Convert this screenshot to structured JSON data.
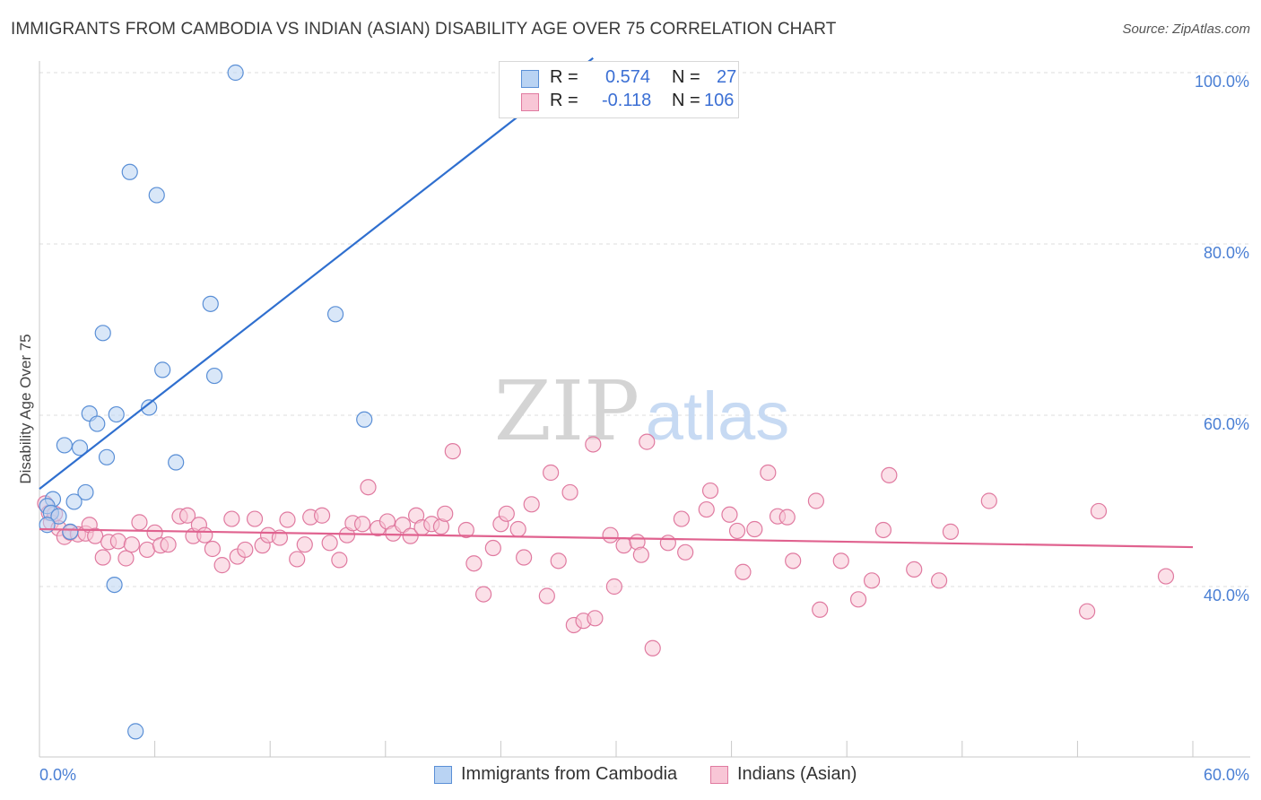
{
  "header": {
    "title": "IMMIGRANTS FROM CAMBODIA VS INDIAN (ASIAN) DISABILITY AGE OVER 75 CORRELATION CHART",
    "source": "Source: ZipAtlas.com"
  },
  "watermark": {
    "zip": "ZIP",
    "atlas": "atlas"
  },
  "legend": {
    "rows": [
      {
        "r_label": "R =",
        "r_value": "0.574",
        "n_label": "N =",
        "n_value": "27"
      },
      {
        "r_label": "R =",
        "r_value": "-0.118",
        "n_label": "N =",
        "n_value": "106"
      }
    ]
  },
  "colors": {
    "blue_fill": "#b9d3f3",
    "blue_stroke": "#5a8fd6",
    "blue_line": "#2f6fcf",
    "pink_fill": "#f8c6d6",
    "pink_stroke": "#e07aa0",
    "pink_line": "#e0628f",
    "tick_text": "#4a7fd4",
    "grid": "#dddddd"
  },
  "chart_data": {
    "type": "scatter",
    "title": "IMMIGRANTS FROM CAMBODIA VS INDIAN (ASIAN) DISABILITY AGE OVER 75 CORRELATION CHART",
    "xlabel": "",
    "ylabel": "Disability Age Over 75",
    "xlim": [
      0,
      60
    ],
    "ylim": [
      20,
      102
    ],
    "x_tick_labels": [
      "0.0%",
      "60.0%"
    ],
    "y_ticks": [
      40,
      60,
      80,
      100
    ],
    "y_tick_labels": [
      "40.0%",
      "60.0%",
      "80.0%",
      "100.0%"
    ],
    "grid": true,
    "series": [
      {
        "name": "Immigrants from Cambodia",
        "color": "blue",
        "r": 0.574,
        "n": 27,
        "trend": {
          "x0": 0.0,
          "y0": 51.4,
          "x1": 28.8,
          "y1": 101.7
        },
        "points": [
          [
            10.2,
            100.0
          ],
          [
            4.7,
            88.4
          ],
          [
            6.1,
            85.7
          ],
          [
            8.9,
            73.0
          ],
          [
            15.4,
            71.8
          ],
          [
            3.3,
            69.6
          ],
          [
            6.4,
            65.3
          ],
          [
            9.1,
            64.6
          ],
          [
            5.7,
            60.9
          ],
          [
            2.6,
            60.2
          ],
          [
            4.0,
            60.1
          ],
          [
            3.0,
            59.0
          ],
          [
            16.9,
            59.5
          ],
          [
            1.3,
            56.5
          ],
          [
            2.1,
            56.2
          ],
          [
            3.5,
            55.1
          ],
          [
            7.1,
            54.5
          ],
          [
            2.4,
            51.0
          ],
          [
            0.7,
            50.2
          ],
          [
            1.8,
            49.9
          ],
          [
            0.4,
            49.4
          ],
          [
            0.6,
            48.6
          ],
          [
            1.0,
            48.2
          ],
          [
            0.4,
            47.2
          ],
          [
            1.6,
            46.4
          ],
          [
            3.9,
            40.2
          ],
          [
            5.0,
            23.1
          ]
        ]
      },
      {
        "name": "Indians (Asian)",
        "color": "pink",
        "r": -0.118,
        "n": 106,
        "trend": {
          "x0": 0.0,
          "y0": 46.7,
          "x1": 60.0,
          "y1": 44.6
        },
        "points": [
          [
            0.3,
            49.7
          ],
          [
            0.5,
            48.6
          ],
          [
            0.6,
            47.5
          ],
          [
            0.8,
            48.5
          ],
          [
            1.0,
            46.8
          ],
          [
            1.3,
            45.8
          ],
          [
            1.6,
            46.3
          ],
          [
            2.0,
            46.1
          ],
          [
            2.4,
            46.2
          ],
          [
            2.6,
            47.2
          ],
          [
            2.9,
            45.9
          ],
          [
            3.3,
            43.4
          ],
          [
            3.6,
            45.2
          ],
          [
            4.1,
            45.3
          ],
          [
            4.5,
            43.3
          ],
          [
            4.8,
            44.9
          ],
          [
            5.2,
            47.5
          ],
          [
            5.6,
            44.3
          ],
          [
            6.0,
            46.3
          ],
          [
            6.3,
            44.8
          ],
          [
            6.7,
            44.9
          ],
          [
            7.3,
            48.2
          ],
          [
            7.7,
            48.3
          ],
          [
            8.0,
            45.9
          ],
          [
            8.3,
            47.2
          ],
          [
            8.6,
            46.0
          ],
          [
            9.0,
            44.4
          ],
          [
            9.5,
            42.5
          ],
          [
            10.0,
            47.9
          ],
          [
            10.3,
            43.5
          ],
          [
            10.7,
            44.3
          ],
          [
            11.2,
            47.9
          ],
          [
            11.6,
            44.8
          ],
          [
            11.9,
            46.0
          ],
          [
            12.5,
            45.7
          ],
          [
            12.9,
            47.8
          ],
          [
            13.4,
            43.2
          ],
          [
            13.8,
            44.9
          ],
          [
            14.1,
            48.1
          ],
          [
            14.7,
            48.3
          ],
          [
            15.1,
            45.1
          ],
          [
            15.6,
            43.1
          ],
          [
            16.0,
            46.0
          ],
          [
            16.3,
            47.4
          ],
          [
            16.8,
            47.3
          ],
          [
            17.1,
            51.6
          ],
          [
            17.6,
            46.8
          ],
          [
            18.1,
            47.6
          ],
          [
            18.4,
            46.2
          ],
          [
            18.9,
            47.2
          ],
          [
            19.3,
            45.9
          ],
          [
            19.6,
            48.3
          ],
          [
            19.9,
            46.9
          ],
          [
            20.4,
            47.3
          ],
          [
            20.9,
            47.0
          ],
          [
            21.1,
            48.5
          ],
          [
            21.5,
            55.8
          ],
          [
            22.2,
            46.6
          ],
          [
            22.6,
            42.7
          ],
          [
            23.1,
            39.1
          ],
          [
            23.6,
            44.5
          ],
          [
            24.0,
            47.3
          ],
          [
            24.3,
            48.5
          ],
          [
            24.9,
            46.7
          ],
          [
            25.2,
            43.4
          ],
          [
            25.6,
            49.6
          ],
          [
            26.4,
            38.9
          ],
          [
            26.6,
            53.3
          ],
          [
            27.0,
            43.0
          ],
          [
            27.6,
            51.0
          ],
          [
            27.8,
            35.5
          ],
          [
            28.3,
            36.0
          ],
          [
            28.8,
            56.6
          ],
          [
            28.9,
            36.3
          ],
          [
            29.7,
            46.0
          ],
          [
            29.9,
            40.0
          ],
          [
            30.4,
            44.8
          ],
          [
            31.1,
            45.2
          ],
          [
            31.3,
            43.7
          ],
          [
            31.6,
            56.9
          ],
          [
            31.9,
            32.8
          ],
          [
            32.7,
            45.1
          ],
          [
            33.4,
            47.9
          ],
          [
            33.6,
            44.0
          ],
          [
            34.7,
            49.0
          ],
          [
            34.9,
            51.2
          ],
          [
            35.9,
            48.4
          ],
          [
            36.3,
            46.5
          ],
          [
            36.6,
            41.7
          ],
          [
            37.2,
            46.7
          ],
          [
            37.9,
            53.3
          ],
          [
            38.4,
            48.2
          ],
          [
            38.9,
            48.1
          ],
          [
            39.2,
            43.0
          ],
          [
            40.4,
            50.0
          ],
          [
            40.6,
            37.3
          ],
          [
            41.7,
            43.0
          ],
          [
            42.6,
            38.5
          ],
          [
            43.3,
            40.7
          ],
          [
            43.9,
            46.6
          ],
          [
            44.2,
            53.0
          ],
          [
            45.5,
            42.0
          ],
          [
            46.8,
            40.7
          ],
          [
            47.4,
            46.4
          ],
          [
            49.4,
            50.0
          ],
          [
            54.5,
            37.1
          ],
          [
            55.1,
            48.8
          ],
          [
            58.6,
            41.2
          ]
        ]
      }
    ]
  }
}
